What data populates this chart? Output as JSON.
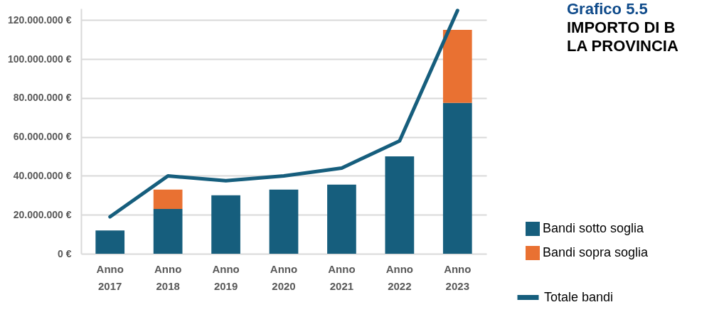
{
  "chart_data": {
    "type": "bar",
    "title": "Grafico 5.5",
    "subtitle": "IMPORTO DI B\nLA PROVINCIA",
    "stacked": true,
    "categories": [
      "Anno 2017",
      "Anno 2018",
      "Anno 2019",
      "Anno 2020",
      "Anno 2021",
      "Anno 2022",
      "Anno 2023"
    ],
    "series": [
      {
        "name": "Bandi sotto soglia",
        "color": "#165e7d",
        "values": [
          12000000,
          23000000,
          30000000,
          33000000,
          35500000,
          50000000,
          77500000
        ]
      },
      {
        "name": "Bandi sopra soglia",
        "color": "#e97132",
        "values": [
          0,
          10000000,
          0,
          0,
          0,
          0,
          37500000
        ]
      },
      {
        "name": "Totale bandi",
        "type": "line",
        "color": "#165e7d",
        "values": [
          19000000,
          40000000,
          37500000,
          40000000,
          44000000,
          58000000,
          125000000
        ]
      }
    ],
    "ylim": [
      0,
      126000000
    ],
    "yticks": [
      {
        "value": 0,
        "label": "0 €"
      },
      {
        "value": 20000000,
        "label": "20.000.000 €"
      },
      {
        "value": 40000000,
        "label": "40.000.000 €"
      },
      {
        "value": 60000000,
        "label": "60.000.000 €"
      },
      {
        "value": 80000000,
        "label": "80.000.000 €"
      },
      {
        "value": 100000000,
        "label": "100.000.000 €"
      },
      {
        "value": 120000000,
        "label": "120.000.000 €"
      }
    ],
    "grid": "y",
    "legend": "bottom right"
  }
}
